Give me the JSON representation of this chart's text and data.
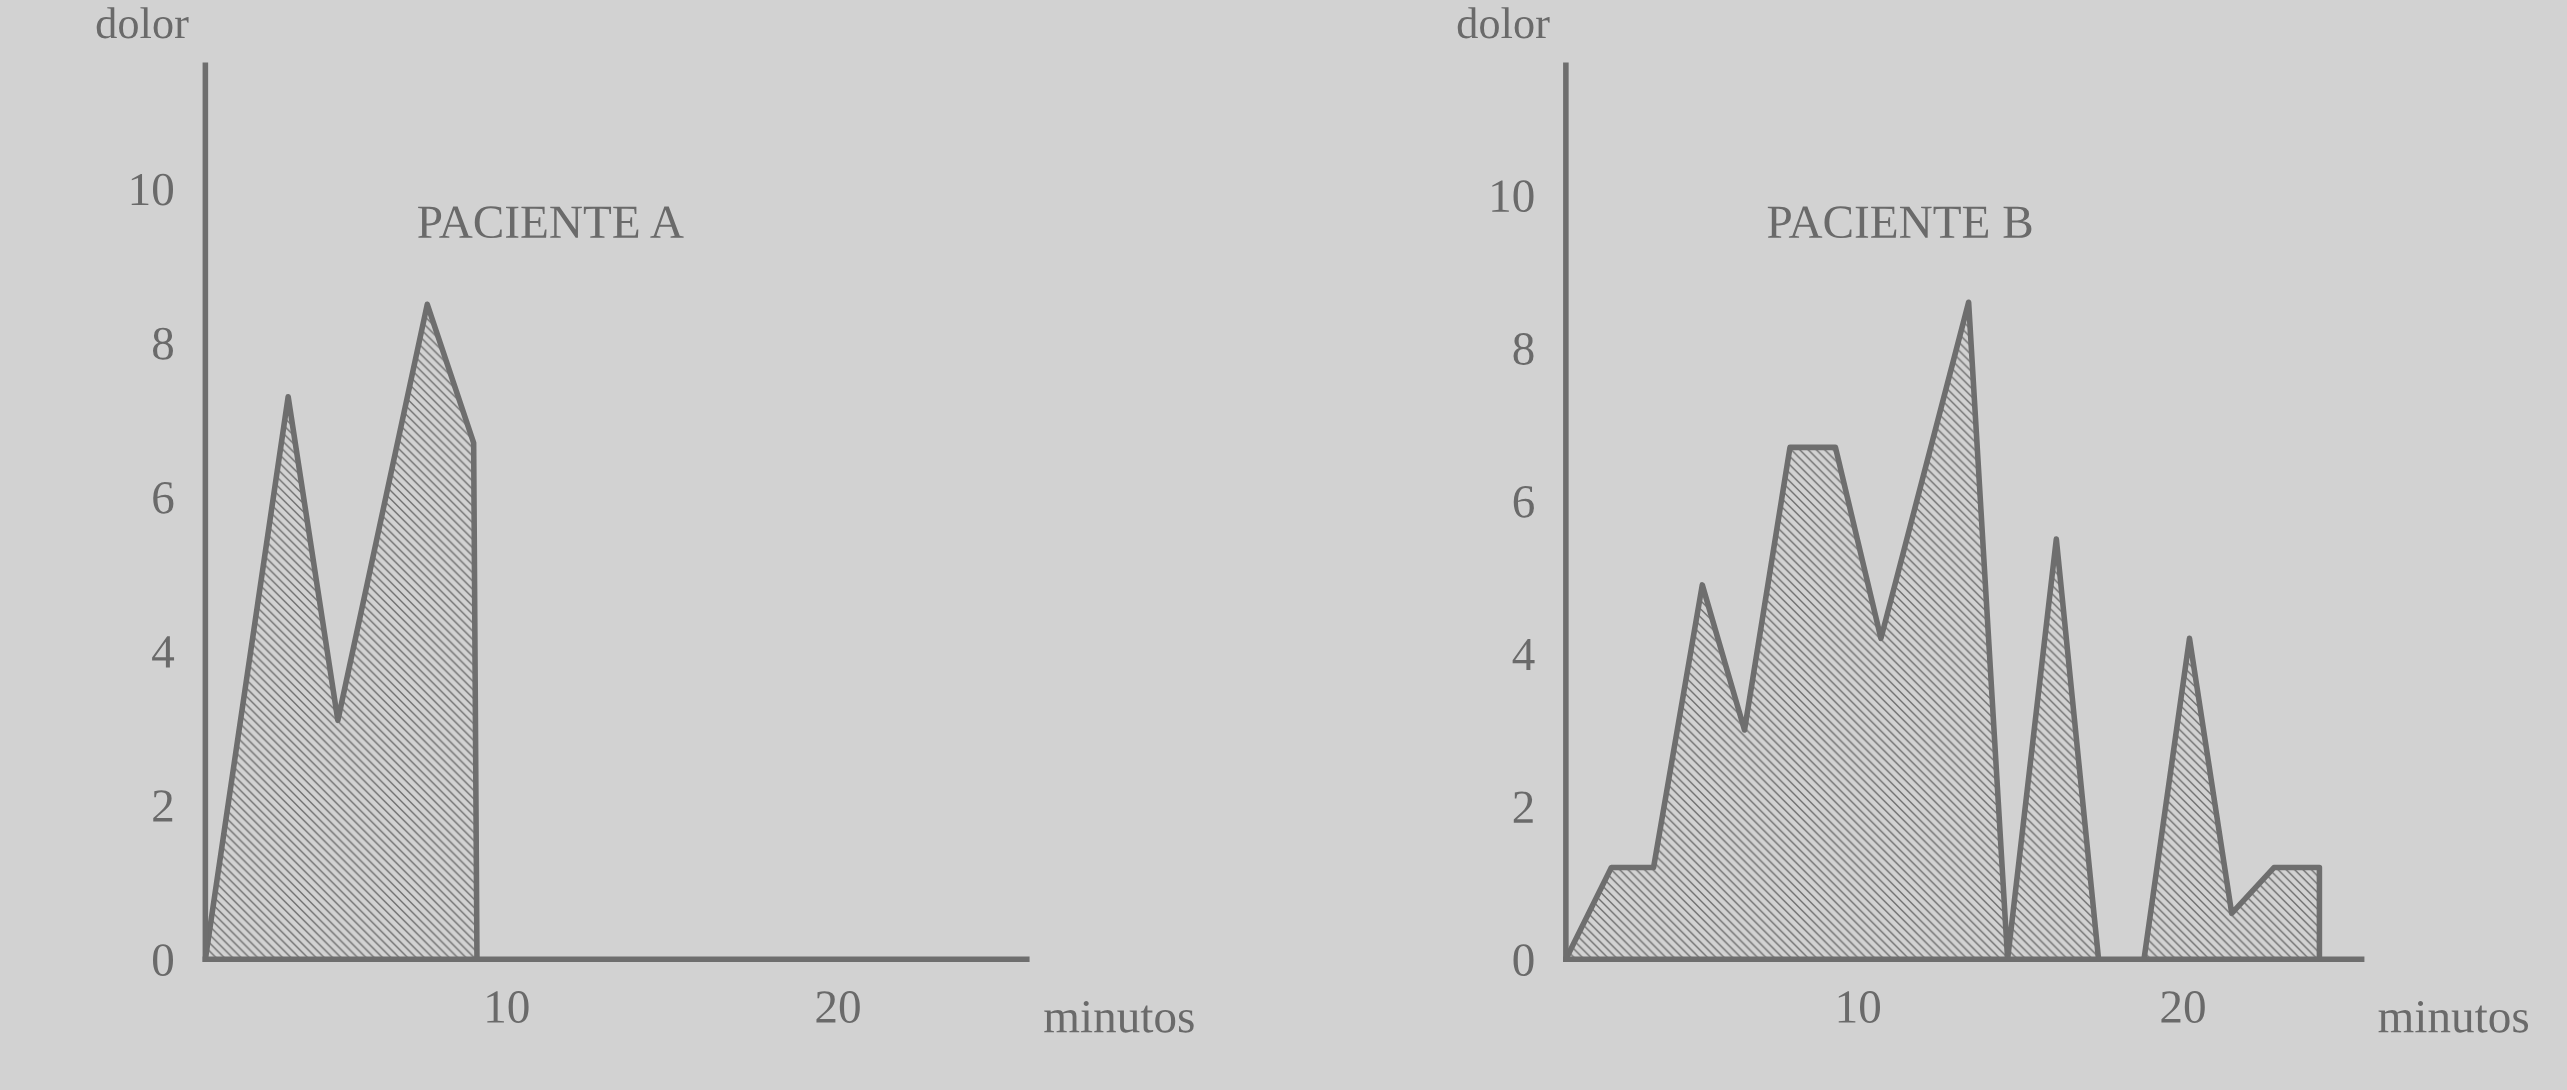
{
  "chart_data": [
    {
      "type": "area",
      "title": "PACIENTE A",
      "xlabel": "minutos",
      "ylabel": "dolor",
      "xlim": [
        0.9,
        25.7
      ],
      "ylim": [
        0,
        11.6
      ],
      "xticks": [
        10,
        20
      ],
      "yticks": [
        0,
        2,
        4,
        6,
        8,
        10
      ],
      "series": [
        {
          "color": "#6e6e6e",
          "x": [
            0.9,
            3.4,
            4.9,
            7.6,
            9.0,
            9.1
          ],
          "values": [
            0,
            7.3,
            3.1,
            8.5,
            6.7,
            0
          ]
        }
      ]
    },
    {
      "type": "area",
      "title": "PACIENTE B",
      "xlabel": "minutos",
      "ylabel": "dolor",
      "xlim": [
        1.0,
        25.5
      ],
      "ylim": [
        0,
        11.7
      ],
      "xticks": [
        10,
        20
      ],
      "yticks": [
        0,
        2,
        4,
        6,
        8,
        10
      ],
      "series": [
        {
          "color": "#6e6e6e",
          "x": [
            1.0,
            2.4,
            3.7,
            5.2,
            6.5,
            7.9,
            9.3,
            10.7,
            13.4,
            14.6,
            16.1,
            17.4,
            18.1,
            18.8,
            20.2,
            21.5,
            22.8,
            24.2,
            24.2
          ],
          "values": [
            0,
            1.2,
            1.2,
            4.9,
            3.0,
            6.7,
            6.7,
            4.2,
            8.6,
            0,
            5.5,
            0,
            null,
            0,
            4.2,
            0.6,
            1.2,
            1.2,
            0
          ]
        }
      ]
    }
  ]
}
